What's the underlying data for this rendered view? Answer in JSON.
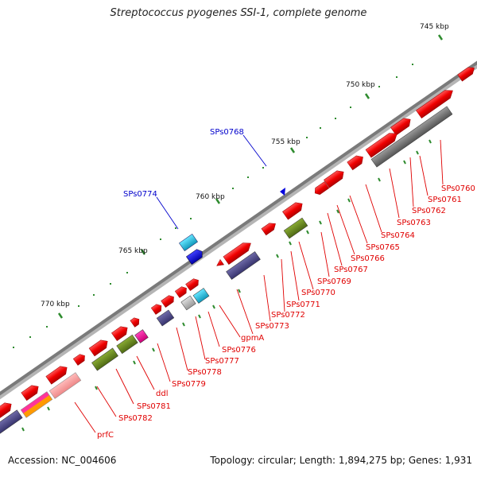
{
  "title": "Streptococcus pyogenes SSI-1, complete genome",
  "accession": "Accession: NC_004606",
  "summary": "Topology: circular; Length: 1,894,275 bp; Genes: 1,931",
  "colors": {
    "backbone": "#808080",
    "tick": "#2e8b2e",
    "label_red": "#e00000",
    "label_blue": "#0000cc"
  },
  "scale_labels": [
    "745 kbp",
    "750 kbp",
    "755 kbp",
    "760 kbp",
    "765 kbp",
    "770 kbp"
  ],
  "gene_labels": [
    {
      "text": "SPs0760",
      "color": "red"
    },
    {
      "text": "SPs0761",
      "color": "red"
    },
    {
      "text": "SPs0762",
      "color": "red"
    },
    {
      "text": "SPs0763",
      "color": "red"
    },
    {
      "text": "SPs0764",
      "color": "red"
    },
    {
      "text": "SPs0765",
      "color": "red"
    },
    {
      "text": "SPs0766",
      "color": "red"
    },
    {
      "text": "SPs0767",
      "color": "red"
    },
    {
      "text": "SPs0769",
      "color": "red"
    },
    {
      "text": "SPs0770",
      "color": "red"
    },
    {
      "text": "SPs0771",
      "color": "red"
    },
    {
      "text": "SPs0772",
      "color": "red"
    },
    {
      "text": "SPs0773",
      "color": "red"
    },
    {
      "text": "gpmA",
      "color": "red"
    },
    {
      "text": "SPs0776",
      "color": "red"
    },
    {
      "text": "SPs0777",
      "color": "red"
    },
    {
      "text": "SPs0778",
      "color": "red"
    },
    {
      "text": "SPs0779",
      "color": "red"
    },
    {
      "text": "ddl",
      "color": "red"
    },
    {
      "text": "SPs0781",
      "color": "red"
    },
    {
      "text": "SPs0782",
      "color": "red"
    },
    {
      "text": "prfC",
      "color": "red"
    },
    {
      "text": "SPs0768",
      "color": "blue"
    },
    {
      "text": "SPs0774",
      "color": "blue"
    }
  ]
}
